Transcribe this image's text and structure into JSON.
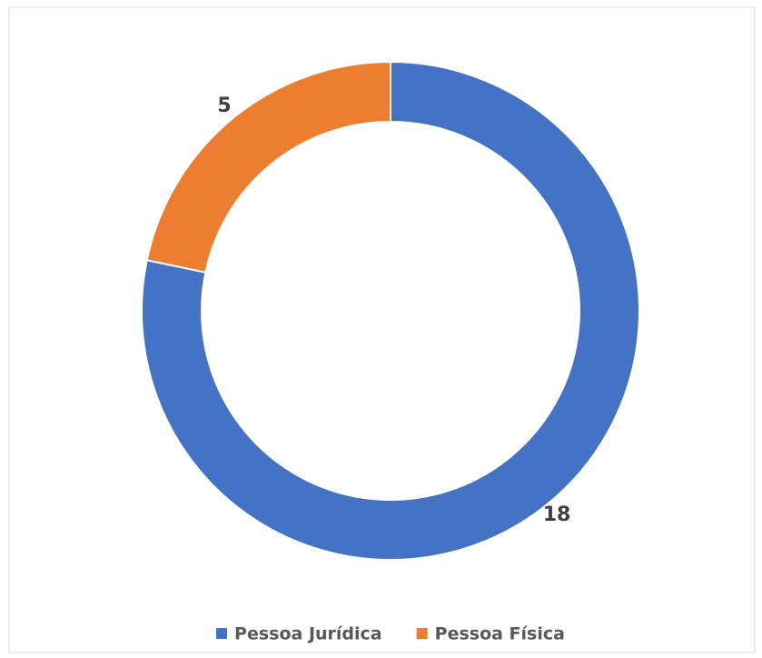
{
  "chart_data": {
    "type": "doughnut",
    "categories": [
      "Pessoa Jurídica",
      "Pessoa Física"
    ],
    "values": [
      18,
      5
    ],
    "colors": [
      "#4472c4",
      "#ed7d31"
    ],
    "legend": "bottom"
  }
}
